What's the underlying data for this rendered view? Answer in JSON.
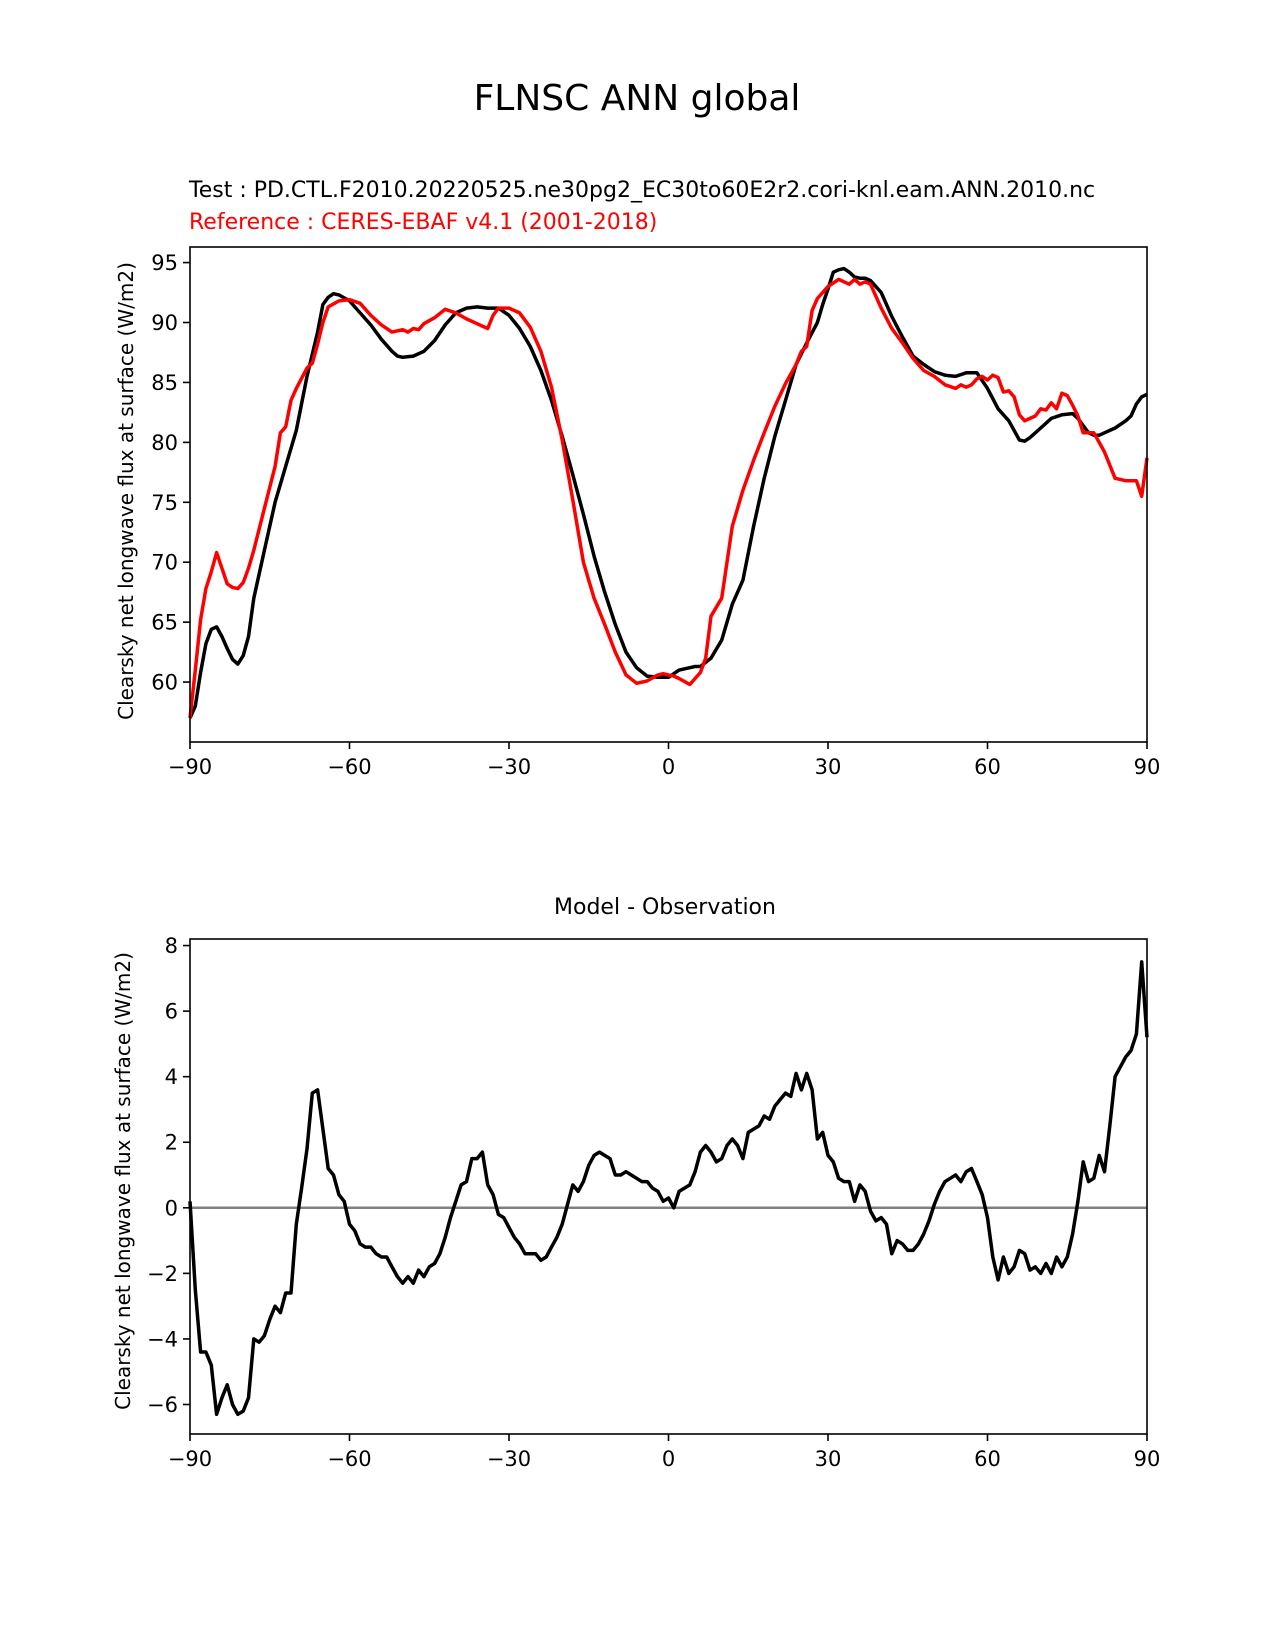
{
  "figure": {
    "title": "FLNSC ANN global"
  },
  "colors": {
    "test": "#000000",
    "reference": "#ff0000",
    "zero_line": "#808080"
  },
  "chart_data": [
    {
      "type": "line",
      "subtitle_test": "Test : PD.CTL.F2010.20220525.ne30pg2_EC30to60E2r2.cori-knl.eam.ANN.2010.nc",
      "subtitle_reference": "Reference : CERES-EBAF v4.1 (2001-2018)",
      "xlabel": "",
      "ylabel": "Clearsky net longwave flux at surface (W/m2)",
      "xlim": [
        -90,
        90
      ],
      "ylim": [
        55,
        96.3
      ],
      "xticks": [
        -90,
        -60,
        -30,
        0,
        30,
        60,
        90
      ],
      "xtick_labels": [
        "−90",
        "−60",
        "−30",
        "0",
        "30",
        "60",
        "90"
      ],
      "yticks": [
        60,
        65,
        70,
        75,
        80,
        85,
        90,
        95
      ],
      "ytick_labels": [
        "60",
        "65",
        "70",
        "75",
        "80",
        "85",
        "90",
        "95"
      ],
      "series": [
        {
          "name": "Test",
          "x": [
            -90,
            -89,
            -88,
            -87,
            -86,
            -85,
            -84,
            -83,
            -82,
            -81,
            -80,
            -79,
            -78,
            -76,
            -74,
            -72,
            -70,
            -68,
            -66,
            -65,
            -64,
            -63,
            -62,
            -60,
            -58,
            -56,
            -54,
            -52,
            -51,
            -50,
            -48,
            -46,
            -44,
            -42,
            -40,
            -38,
            -36,
            -34,
            -32,
            -30,
            -28,
            -26,
            -24,
            -22,
            -20,
            -18,
            -16,
            -14,
            -12,
            -10,
            -8,
            -6,
            -4,
            -2,
            0,
            2,
            4,
            5,
            6,
            8,
            10,
            12,
            14,
            16,
            18,
            20,
            22,
            24,
            26,
            28,
            29,
            30,
            31,
            32,
            33,
            34,
            35,
            36,
            37,
            38,
            40,
            42,
            44,
            46,
            48,
            50,
            52,
            54,
            56,
            58,
            60,
            62,
            64,
            66,
            67,
            68,
            70,
            72,
            74,
            76,
            77,
            78,
            79,
            80,
            81,
            82,
            84,
            86,
            87,
            88,
            89,
            90
          ],
          "values": [
            57,
            58,
            60.8,
            63.2,
            64.4,
            64.6,
            63.8,
            62.8,
            61.9,
            61.5,
            62.2,
            63.8,
            67,
            71,
            75,
            78,
            81,
            85.5,
            89.2,
            91.5,
            92.1,
            92.4,
            92.3,
            91.8,
            90.8,
            89.8,
            88.6,
            87.6,
            87.2,
            87.1,
            87.2,
            87.6,
            88.5,
            89.8,
            90.8,
            91.2,
            91.3,
            91.2,
            91.2,
            90.6,
            89.5,
            88,
            86,
            83.5,
            80.5,
            77.3,
            74,
            70.5,
            67.5,
            64.8,
            62.5,
            61.2,
            60.5,
            60.4,
            60.4,
            61,
            61.2,
            61.3,
            61.3,
            62,
            63.5,
            66.5,
            68.5,
            73,
            77,
            80.5,
            83.5,
            86.5,
            88.3,
            90,
            91.5,
            92.8,
            94.2,
            94.4,
            94.5,
            94.2,
            93.8,
            93.7,
            93.7,
            93.5,
            92.5,
            90.5,
            88.8,
            87.2,
            86.5,
            85.9,
            85.6,
            85.5,
            85.8,
            85.8,
            84.5,
            82.8,
            81.8,
            80.2,
            80.1,
            80.4,
            81.2,
            82,
            82.3,
            82.4,
            82,
            81.4,
            80.8,
            80.6,
            80.6,
            80.8,
            81.2,
            81.8,
            82.2,
            83.2,
            83.8,
            84
          ]
        },
        {
          "name": "Reference",
          "x": [
            -90,
            -89,
            -88,
            -87,
            -86,
            -85,
            -84,
            -83,
            -82,
            -81,
            -80,
            -79,
            -78,
            -76,
            -74,
            -73,
            -72,
            -71,
            -70,
            -68,
            -67,
            -66,
            -65,
            -64,
            -62,
            -60,
            -58,
            -56,
            -54,
            -52,
            -50,
            -49,
            -48,
            -47,
            -46,
            -44,
            -42,
            -40,
            -38,
            -36,
            -35,
            -34,
            -33,
            -32,
            -30,
            -28,
            -26,
            -24,
            -22,
            -20,
            -18,
            -16,
            -14,
            -12,
            -10,
            -8,
            -6,
            -4,
            -2,
            -1,
            0,
            1,
            2,
            4,
            6,
            7,
            8,
            10,
            12,
            14,
            16,
            18,
            20,
            22,
            24,
            25,
            26,
            27,
            28,
            30,
            32,
            33,
            34,
            35,
            36,
            37,
            38,
            40,
            42,
            44,
            46,
            48,
            50,
            52,
            54,
            55,
            56,
            57,
            58,
            59,
            60,
            61,
            62,
            63,
            64,
            65,
            66,
            67,
            68,
            69,
            70,
            71,
            72,
            73,
            74,
            75,
            76,
            77,
            78,
            80,
            81,
            82,
            84,
            86,
            88,
            89,
            90
          ],
          "values": [
            57,
            61,
            65.2,
            67.8,
            69.2,
            70.8,
            69.5,
            68.2,
            67.9,
            67.8,
            68.3,
            69.5,
            71,
            74.5,
            78,
            80.8,
            81.3,
            83.5,
            84.5,
            86.2,
            86.6,
            88.2,
            90,
            91.3,
            91.8,
            91.9,
            91.6,
            90.6,
            89.8,
            89.2,
            89.4,
            89.2,
            89.5,
            89.4,
            89.9,
            90.4,
            91.1,
            90.8,
            90.3,
            89.9,
            89.7,
            89.5,
            90.6,
            91.2,
            91.2,
            90.8,
            89.6,
            87.6,
            84.6,
            80.2,
            75.2,
            70,
            67,
            64.8,
            62.5,
            60.6,
            59.9,
            60.1,
            60.6,
            60.7,
            60.6,
            60.5,
            60.3,
            59.8,
            60.8,
            62,
            65.5,
            67,
            73,
            76,
            78.5,
            80.8,
            83,
            84.9,
            86.5,
            87.6,
            88,
            91,
            92,
            93,
            93.6,
            93.4,
            93.2,
            93.6,
            93.2,
            93.4,
            93.2,
            91.2,
            89.5,
            88.3,
            87,
            86,
            85.5,
            84.8,
            84.5,
            84.8,
            84.6,
            84.8,
            85.3,
            85.5,
            85.2,
            85.6,
            85.4,
            84.2,
            84.3,
            83.8,
            82.3,
            81.8,
            82,
            82.2,
            82.8,
            82.7,
            83.3,
            82.8,
            84.1,
            83.9,
            83.1,
            82.2,
            80.8,
            80.8,
            80,
            79.2,
            77,
            76.8,
            76.8,
            75.5,
            78.7
          ]
        }
      ]
    },
    {
      "type": "line",
      "title": "Model - Observation",
      "xlabel": "",
      "ylabel": "Clearsky net longwave flux at surface (W/m2)",
      "xlim": [
        -90,
        90
      ],
      "ylim": [
        -6.9,
        8.2
      ],
      "xticks": [
        -90,
        -60,
        -30,
        0,
        30,
        60,
        90
      ],
      "xtick_labels": [
        "−90",
        "−60",
        "−30",
        "0",
        "30",
        "60",
        "90"
      ],
      "yticks": [
        -6,
        -4,
        -2,
        0,
        2,
        4,
        6,
        8
      ],
      "ytick_labels": [
        "−6",
        "−4",
        "−2",
        "0",
        "2",
        "4",
        "6",
        "8"
      ],
      "zero_line": 0,
      "series": [
        {
          "name": "Model - Observation",
          "x": [
            -90,
            -89,
            -88,
            -87,
            -86,
            -85,
            -84,
            -83,
            -82,
            -81,
            -80,
            -79,
            -78,
            -77,
            -76,
            -75,
            -74,
            -73,
            -72,
            -71,
            -70,
            -69,
            -68,
            -67,
            -66,
            -65,
            -64,
            -63,
            -62,
            -61,
            -60,
            -59,
            -58,
            -57,
            -56,
            -55,
            -54,
            -53,
            -52,
            -51,
            -50,
            -49,
            -48,
            -47,
            -46,
            -45,
            -44,
            -43,
            -42,
            -41,
            -40,
            -39,
            -38,
            -37,
            -36,
            -35,
            -34,
            -33,
            -32,
            -31,
            -30,
            -29,
            -28,
            -27,
            -26,
            -25,
            -24,
            -23,
            -22,
            -21,
            -20,
            -19,
            -18,
            -17,
            -16,
            -15,
            -14,
            -13,
            -12,
            -11,
            -10,
            -9,
            -8,
            -7,
            -6,
            -5,
            -4,
            -3,
            -2,
            -1,
            0,
            1,
            2,
            3,
            4,
            5,
            6,
            7,
            8,
            9,
            10,
            11,
            12,
            13,
            14,
            15,
            16,
            17,
            18,
            19,
            20,
            21,
            22,
            23,
            24,
            25,
            26,
            27,
            28,
            29,
            30,
            31,
            32,
            33,
            34,
            35,
            36,
            37,
            38,
            39,
            40,
            41,
            42,
            43,
            44,
            45,
            46,
            47,
            48,
            49,
            50,
            51,
            52,
            53,
            54,
            55,
            56,
            57,
            58,
            59,
            60,
            61,
            62,
            63,
            64,
            65,
            66,
            67,
            68,
            69,
            70,
            71,
            72,
            73,
            74,
            75,
            76,
            77,
            78,
            79,
            80,
            81,
            82,
            83,
            84,
            85,
            86,
            87,
            88,
            89,
            90
          ],
          "values": [
            0.2,
            -2.5,
            -4.4,
            -4.4,
            -4.8,
            -6.3,
            -5.8,
            -5.4,
            -6.0,
            -6.3,
            -6.2,
            -5.8,
            -4.0,
            -4.1,
            -3.9,
            -3.4,
            -3.0,
            -3.2,
            -2.6,
            -2.6,
            -0.5,
            0.6,
            1.8,
            3.5,
            3.6,
            2.4,
            1.2,
            1.0,
            0.4,
            0.2,
            -0.5,
            -0.7,
            -1.1,
            -1.2,
            -1.2,
            -1.4,
            -1.5,
            -1.5,
            -1.8,
            -2.1,
            -2.3,
            -2.1,
            -2.3,
            -1.9,
            -2.1,
            -1.8,
            -1.7,
            -1.4,
            -0.9,
            -0.3,
            0.2,
            0.7,
            0.8,
            1.5,
            1.5,
            1.7,
            0.7,
            0.4,
            -0.2,
            -0.3,
            -0.6,
            -0.9,
            -1.1,
            -1.4,
            -1.4,
            -1.4,
            -1.6,
            -1.5,
            -1.2,
            -0.9,
            -0.5,
            0.1,
            0.7,
            0.5,
            0.8,
            1.3,
            1.6,
            1.7,
            1.6,
            1.5,
            1.0,
            1.0,
            1.1,
            1.0,
            0.9,
            0.8,
            0.8,
            0.6,
            0.5,
            0.2,
            0.3,
            0.0,
            0.5,
            0.6,
            0.7,
            1.1,
            1.7,
            1.9,
            1.7,
            1.4,
            1.5,
            1.9,
            2.1,
            1.9,
            1.5,
            2.3,
            2.4,
            2.5,
            2.8,
            2.7,
            3.1,
            3.3,
            3.5,
            3.4,
            4.1,
            3.6,
            4.1,
            3.6,
            2.1,
            2.3,
            1.6,
            1.4,
            0.9,
            0.8,
            0.8,
            0.2,
            0.7,
            0.5,
            -0.1,
            -0.4,
            -0.3,
            -0.5,
            -1.4,
            -1.0,
            -1.1,
            -1.3,
            -1.3,
            -1.1,
            -0.8,
            -0.4,
            0.1,
            0.5,
            0.8,
            0.9,
            1.0,
            0.8,
            1.1,
            1.2,
            0.8,
            0.4,
            -0.3,
            -1.5,
            -2.2,
            -1.5,
            -2.0,
            -1.8,
            -1.3,
            -1.4,
            -1.9,
            -1.8,
            -2.0,
            -1.7,
            -2.0,
            -1.5,
            -1.8,
            -1.5,
            -0.8,
            0.2,
            1.4,
            0.8,
            0.9,
            1.6,
            1.1,
            2.5,
            4.0,
            4.3,
            4.6,
            4.8,
            5.3,
            7.5,
            5.2
          ]
        }
      ]
    }
  ]
}
